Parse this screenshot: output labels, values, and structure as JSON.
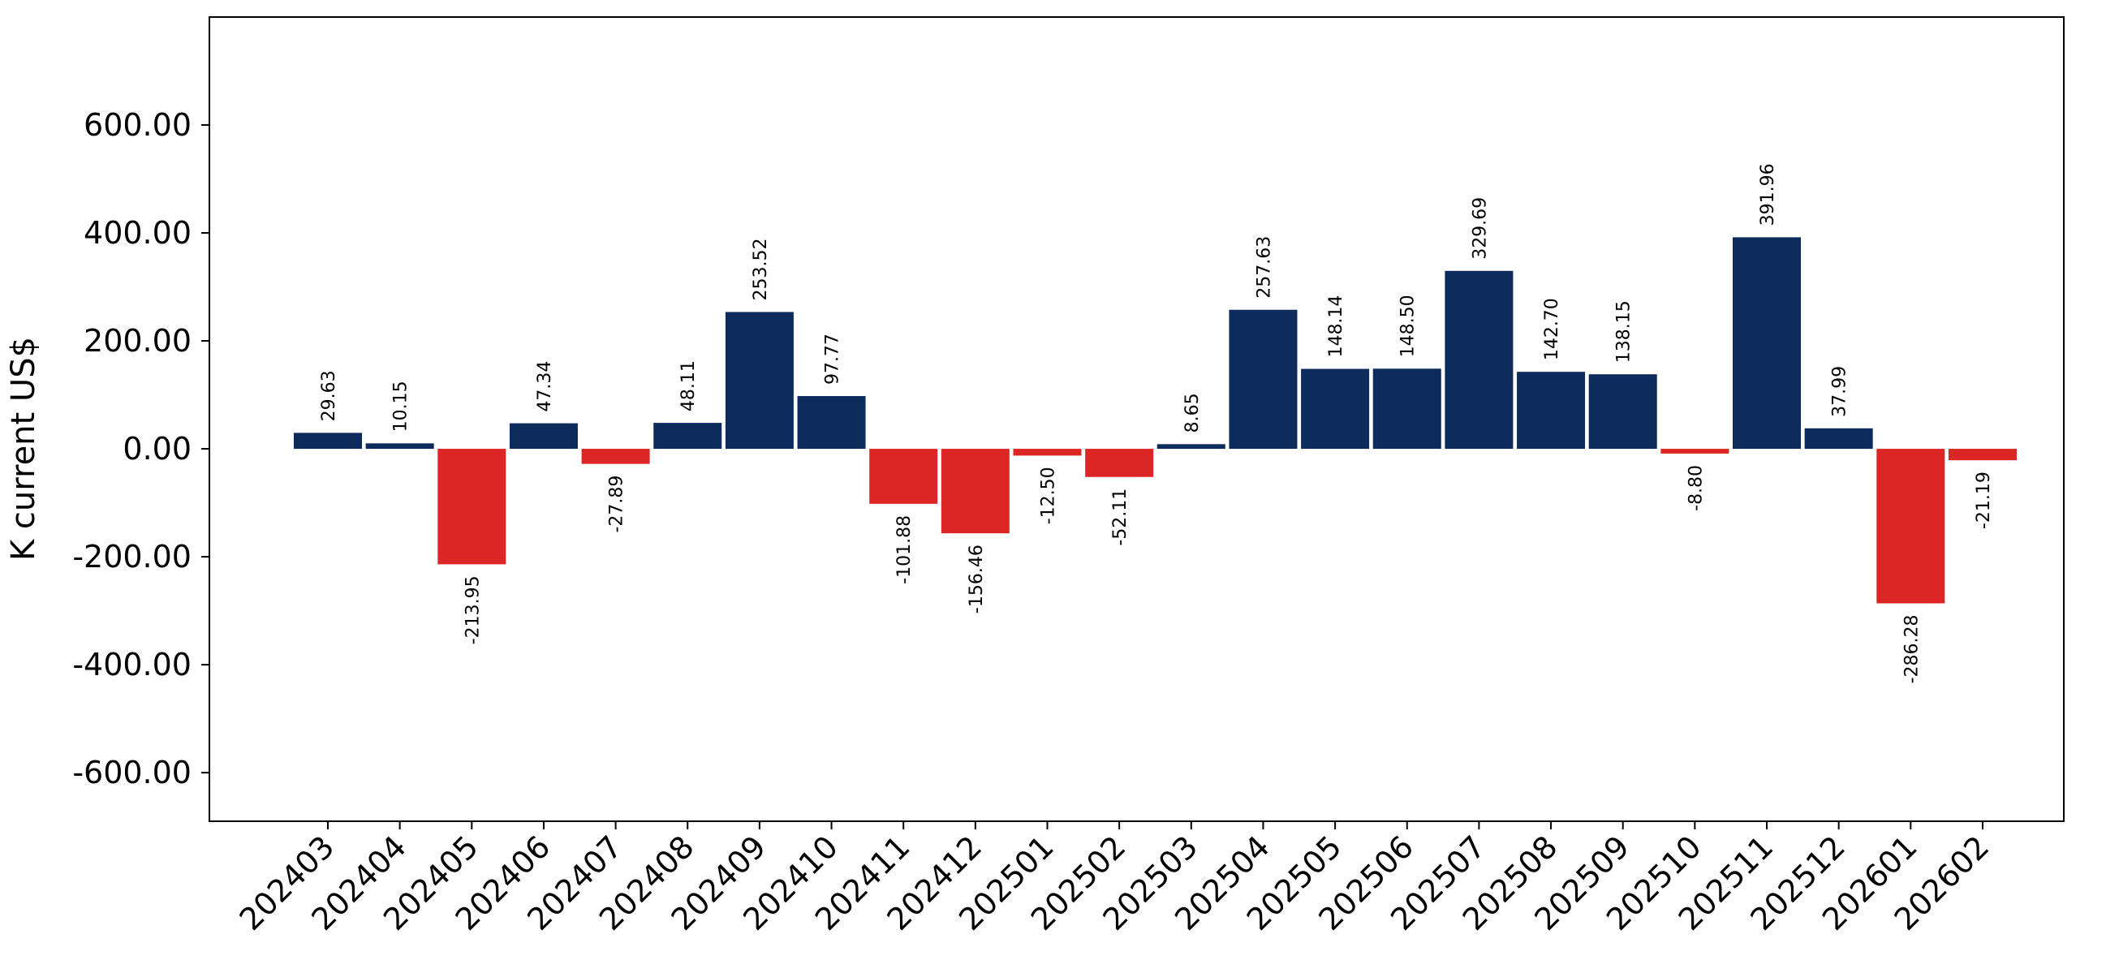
{
  "chart_data": {
    "type": "bar",
    "title": "",
    "xlabel": "",
    "ylabel": "K current US$",
    "ylim": [
      -690,
      800
    ],
    "yticks": [
      -600,
      -400,
      -200,
      0,
      200,
      400,
      600
    ],
    "ytick_labels": [
      "-600.00",
      "-400.00",
      "-200.00",
      "0.00",
      "200.00",
      "400.00",
      "600.00"
    ],
    "grid": false,
    "legend": "none",
    "colors": {
      "positive": "#0d2b5b",
      "negative": "#dc2626",
      "axis": "#000000"
    },
    "categories": [
      "202403",
      "202404",
      "202405",
      "202406",
      "202407",
      "202408",
      "202409",
      "202410",
      "202411",
      "202412",
      "202501",
      "202502",
      "202503",
      "202504",
      "202505",
      "202506",
      "202507",
      "202508",
      "202509",
      "202510",
      "202511",
      "202512",
      "202601",
      "202602"
    ],
    "values": [
      29.63,
      10.15,
      -213.95,
      47.34,
      -27.89,
      48.11,
      253.52,
      97.77,
      -101.88,
      -156.46,
      -12.5,
      -52.11,
      8.65,
      257.63,
      148.14,
      148.5,
      329.69,
      142.7,
      138.15,
      -8.8,
      391.96,
      37.99,
      -286.28,
      -21.19
    ],
    "value_labels": [
      "29.63",
      "10.15",
      "-213.95",
      "47.34",
      "-27.89",
      "48.11",
      "253.52",
      "97.77",
      "-101.88",
      "-156.46",
      "-12.50",
      "-52.11",
      "8.65",
      "257.63",
      "148.14",
      "148.50",
      "329.69",
      "142.70",
      "138.15",
      "-8.80",
      "391.96",
      "37.99",
      "-286.28",
      "-21.19"
    ]
  }
}
